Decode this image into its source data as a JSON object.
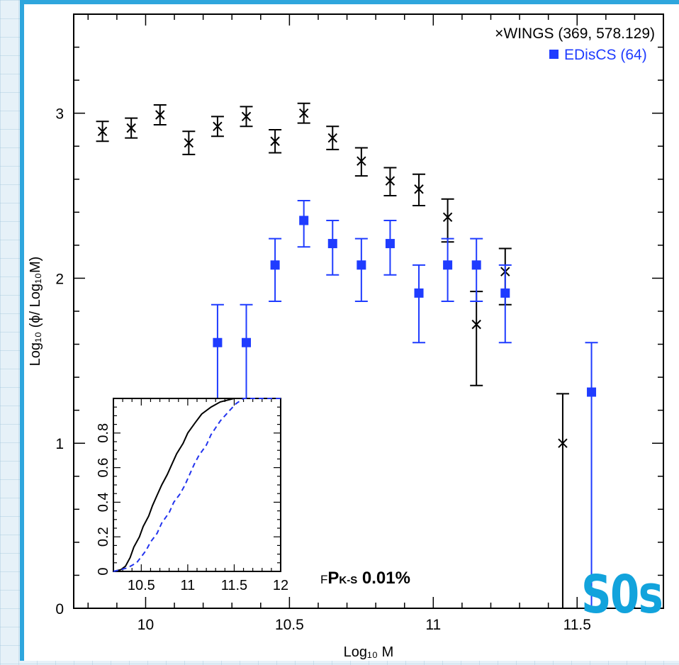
{
  "chart_data": {
    "type": "scatter",
    "xlabel": "Log₁₀ M",
    "ylabel": "Log₁₀ (ϕ/ Log₁₀M)",
    "xlim": [
      9.75,
      11.8
    ],
    "ylim": [
      0,
      3.6
    ],
    "xticks": [
      "10",
      "10.5",
      "11",
      "11.5"
    ],
    "yticks": [
      "0",
      "1",
      "2",
      "3"
    ],
    "series": [
      {
        "name": "WINGS (369, 578.129)",
        "color": "#000000",
        "marker": "x",
        "points": [
          {
            "x": 9.85,
            "y": 2.89,
            "lo": 2.83,
            "hi": 2.95
          },
          {
            "x": 9.95,
            "y": 2.91,
            "lo": 2.85,
            "hi": 2.97
          },
          {
            "x": 10.05,
            "y": 2.99,
            "lo": 2.93,
            "hi": 3.05
          },
          {
            "x": 10.15,
            "y": 2.82,
            "lo": 2.75,
            "hi": 2.89
          },
          {
            "x": 10.25,
            "y": 2.92,
            "lo": 2.86,
            "hi": 2.98
          },
          {
            "x": 10.35,
            "y": 2.98,
            "lo": 2.92,
            "hi": 3.04
          },
          {
            "x": 10.45,
            "y": 2.83,
            "lo": 2.76,
            "hi": 2.9
          },
          {
            "x": 10.55,
            "y": 3.0,
            "lo": 2.94,
            "hi": 3.06
          },
          {
            "x": 10.65,
            "y": 2.85,
            "lo": 2.78,
            "hi": 2.92
          },
          {
            "x": 10.75,
            "y": 2.71,
            "lo": 2.62,
            "hi": 2.79
          },
          {
            "x": 10.85,
            "y": 2.59,
            "lo": 2.5,
            "hi": 2.67
          },
          {
            "x": 10.95,
            "y": 2.54,
            "lo": 2.44,
            "hi": 2.63
          },
          {
            "x": 11.05,
            "y": 2.37,
            "lo": 2.22,
            "hi": 2.48
          },
          {
            "x": 11.15,
            "y": 1.72,
            "lo": 1.35,
            "hi": 1.92
          },
          {
            "x": 11.25,
            "y": 2.04,
            "lo": 1.84,
            "hi": 2.18
          },
          {
            "x": 11.45,
            "y": 1.0,
            "lo": 0.0,
            "hi": 1.3
          }
        ]
      },
      {
        "name": "EDisCS (64)",
        "color": "#1f3cff",
        "marker": "square",
        "points": [
          {
            "x": 10.25,
            "y": 1.61,
            "lo": 1.07,
            "hi": 1.84
          },
          {
            "x": 10.35,
            "y": 1.61,
            "lo": 1.07,
            "hi": 1.84
          },
          {
            "x": 10.45,
            "y": 2.08,
            "lo": 1.86,
            "hi": 2.24
          },
          {
            "x": 10.55,
            "y": 2.35,
            "lo": 2.19,
            "hi": 2.47
          },
          {
            "x": 10.65,
            "y": 2.21,
            "lo": 2.02,
            "hi": 2.35
          },
          {
            "x": 10.75,
            "y": 2.08,
            "lo": 1.86,
            "hi": 2.24
          },
          {
            "x": 10.85,
            "y": 2.21,
            "lo": 2.02,
            "hi": 2.35
          },
          {
            "x": 10.95,
            "y": 1.91,
            "lo": 1.61,
            "hi": 2.08
          },
          {
            "x": 11.05,
            "y": 2.08,
            "lo": 1.86,
            "hi": 2.24
          },
          {
            "x": 11.15,
            "y": 2.08,
            "lo": 1.86,
            "hi": 2.24
          },
          {
            "x": 11.25,
            "y": 1.91,
            "lo": 1.61,
            "hi": 2.08
          },
          {
            "x": 11.55,
            "y": 1.31,
            "lo": 0.0,
            "hi": 1.61
          }
        ]
      }
    ],
    "inset": {
      "type": "line",
      "xlim": [
        10.2,
        12.0
      ],
      "ylim": [
        0,
        1.0
      ],
      "xticks": [
        "10.5",
        "11",
        "11.5",
        "12"
      ],
      "yticks": [
        "0",
        "0.2",
        "0.4",
        "0.6",
        "0.8"
      ],
      "series": [
        {
          "color": "#000000",
          "style": "solid",
          "points": [
            [
              10.2,
              0.0
            ],
            [
              10.28,
              0.01
            ],
            [
              10.33,
              0.03
            ],
            [
              10.38,
              0.08
            ],
            [
              10.42,
              0.14
            ],
            [
              10.48,
              0.2
            ],
            [
              10.52,
              0.26
            ],
            [
              10.58,
              0.32
            ],
            [
              10.62,
              0.38
            ],
            [
              10.67,
              0.44
            ],
            [
              10.72,
              0.5
            ],
            [
              10.78,
              0.56
            ],
            [
              10.83,
              0.62
            ],
            [
              10.88,
              0.68
            ],
            [
              10.95,
              0.74
            ],
            [
              11.0,
              0.8
            ],
            [
              11.08,
              0.86
            ],
            [
              11.15,
              0.91
            ],
            [
              11.25,
              0.95
            ],
            [
              11.35,
              0.98
            ],
            [
              11.5,
              1.0
            ],
            [
              12.0,
              1.0
            ]
          ]
        },
        {
          "color": "#2233ee",
          "style": "dashed",
          "points": [
            [
              10.2,
              0.0
            ],
            [
              10.35,
              0.02
            ],
            [
              10.45,
              0.05
            ],
            [
              10.55,
              0.12
            ],
            [
              10.6,
              0.17
            ],
            [
              10.67,
              0.22
            ],
            [
              10.72,
              0.28
            ],
            [
              10.8,
              0.34
            ],
            [
              10.85,
              0.4
            ],
            [
              10.92,
              0.45
            ],
            [
              10.97,
              0.5
            ],
            [
              11.02,
              0.56
            ],
            [
              11.07,
              0.62
            ],
            [
              11.12,
              0.67
            ],
            [
              11.2,
              0.73
            ],
            [
              11.25,
              0.79
            ],
            [
              11.3,
              0.83
            ],
            [
              11.35,
              0.87
            ],
            [
              11.45,
              0.93
            ],
            [
              11.52,
              0.97
            ],
            [
              11.6,
              1.0
            ],
            [
              12.0,
              1.0
            ]
          ]
        }
      ]
    }
  },
  "annotation": {
    "f_prefix": "F",
    "p_label": "P",
    "p_sub": "K-S",
    "p_value": " 0.01%"
  },
  "badge": "S0s"
}
